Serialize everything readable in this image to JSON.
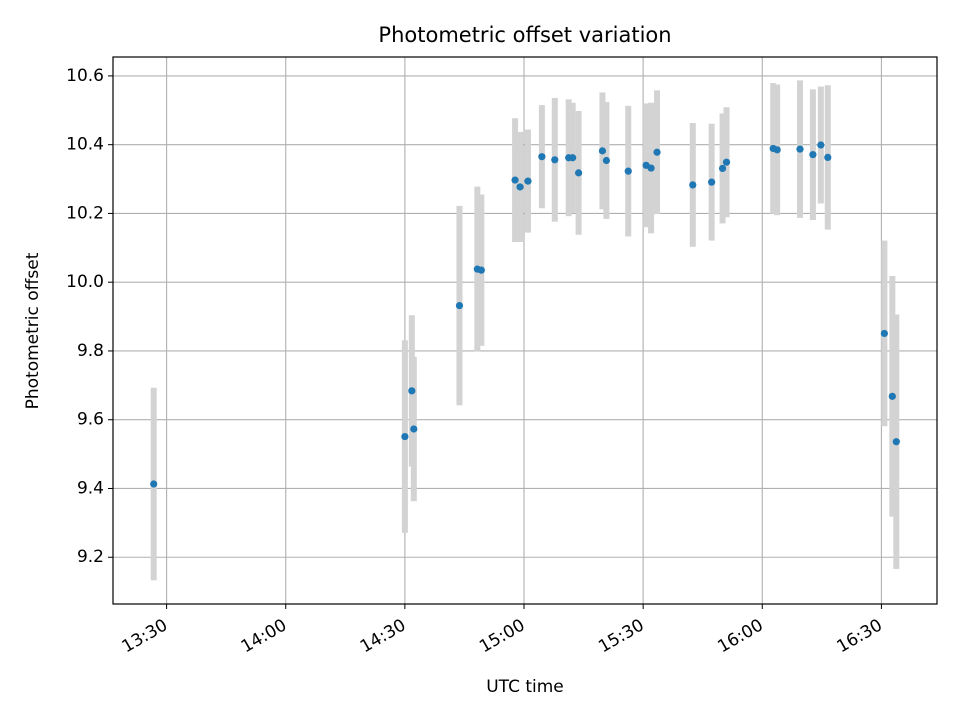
{
  "chart_data": {
    "type": "scatter",
    "title": "Photometric offset variation",
    "xlabel": "UTC time",
    "ylabel": "Photometric offset",
    "x_unit": "UTC time (HH:MM)",
    "xlim": [
      "13:16:30",
      "16:44:00"
    ],
    "ylim": [
      9.064,
      10.655
    ],
    "grid": true,
    "x_ticks": [
      "13:30",
      "14:00",
      "14:30",
      "15:00",
      "15:30",
      "16:00",
      "16:30"
    ],
    "y_ticks": [
      9.2,
      9.4,
      9.6,
      9.8,
      10.0,
      10.2,
      10.4,
      10.6
    ],
    "y_tick_labels": [
      "9.2",
      "9.4",
      "9.6",
      "9.8",
      "10.0",
      "10.2",
      "10.4",
      "10.6"
    ],
    "colors": {
      "point": "#1f77b4",
      "errorbar": "#d3d3d3",
      "grid": "#b0b0b0"
    },
    "points": [
      {
        "x": "13:26:45",
        "y": 9.413,
        "err": 0.28
      },
      {
        "x": "14:30:00",
        "y": 9.551,
        "err": 0.28
      },
      {
        "x": "14:31:45",
        "y": 9.684,
        "err": 0.22
      },
      {
        "x": "14:32:15",
        "y": 9.573,
        "err": 0.21
      },
      {
        "x": "14:43:45",
        "y": 9.932,
        "err": 0.29
      },
      {
        "x": "14:48:15",
        "y": 10.038,
        "err": 0.24
      },
      {
        "x": "14:49:15",
        "y": 10.035,
        "err": 0.22
      },
      {
        "x": "14:57:45",
        "y": 10.297,
        "err": 0.18
      },
      {
        "x": "14:59:00",
        "y": 10.277,
        "err": 0.16
      },
      {
        "x": "15:01:00",
        "y": 10.294,
        "err": 0.15
      },
      {
        "x": "15:04:30",
        "y": 10.365,
        "err": 0.15
      },
      {
        "x": "15:07:45",
        "y": 10.356,
        "err": 0.18
      },
      {
        "x": "15:11:15",
        "y": 10.362,
        "err": 0.17
      },
      {
        "x": "15:12:15",
        "y": 10.362,
        "err": 0.16
      },
      {
        "x": "15:13:45",
        "y": 10.318,
        "err": 0.18
      },
      {
        "x": "15:19:45",
        "y": 10.382,
        "err": 0.17
      },
      {
        "x": "15:20:45",
        "y": 10.354,
        "err": 0.17
      },
      {
        "x": "15:26:15",
        "y": 10.323,
        "err": 0.19
      },
      {
        "x": "15:30:45",
        "y": 10.34,
        "err": 0.18
      },
      {
        "x": "15:32:00",
        "y": 10.332,
        "err": 0.19
      },
      {
        "x": "15:33:30",
        "y": 10.378,
        "err": 0.18
      },
      {
        "x": "15:42:30",
        "y": 10.283,
        "err": 0.18
      },
      {
        "x": "15:47:15",
        "y": 10.291,
        "err": 0.17
      },
      {
        "x": "15:50:00",
        "y": 10.331,
        "err": 0.16
      },
      {
        "x": "15:51:00",
        "y": 10.349,
        "err": 0.16
      },
      {
        "x": "16:02:45",
        "y": 10.389,
        "err": 0.19
      },
      {
        "x": "16:03:45",
        "y": 10.385,
        "err": 0.19
      },
      {
        "x": "16:09:30",
        "y": 10.387,
        "err": 0.2
      },
      {
        "x": "16:12:45",
        "y": 10.371,
        "err": 0.19
      },
      {
        "x": "16:14:45",
        "y": 10.399,
        "err": 0.17
      },
      {
        "x": "16:16:30",
        "y": 10.363,
        "err": 0.21
      },
      {
        "x": "16:30:45",
        "y": 9.851,
        "err": 0.27
      },
      {
        "x": "16:32:45",
        "y": 9.668,
        "err": 0.35
      },
      {
        "x": "16:33:45",
        "y": 9.536,
        "err": 0.37
      }
    ]
  }
}
